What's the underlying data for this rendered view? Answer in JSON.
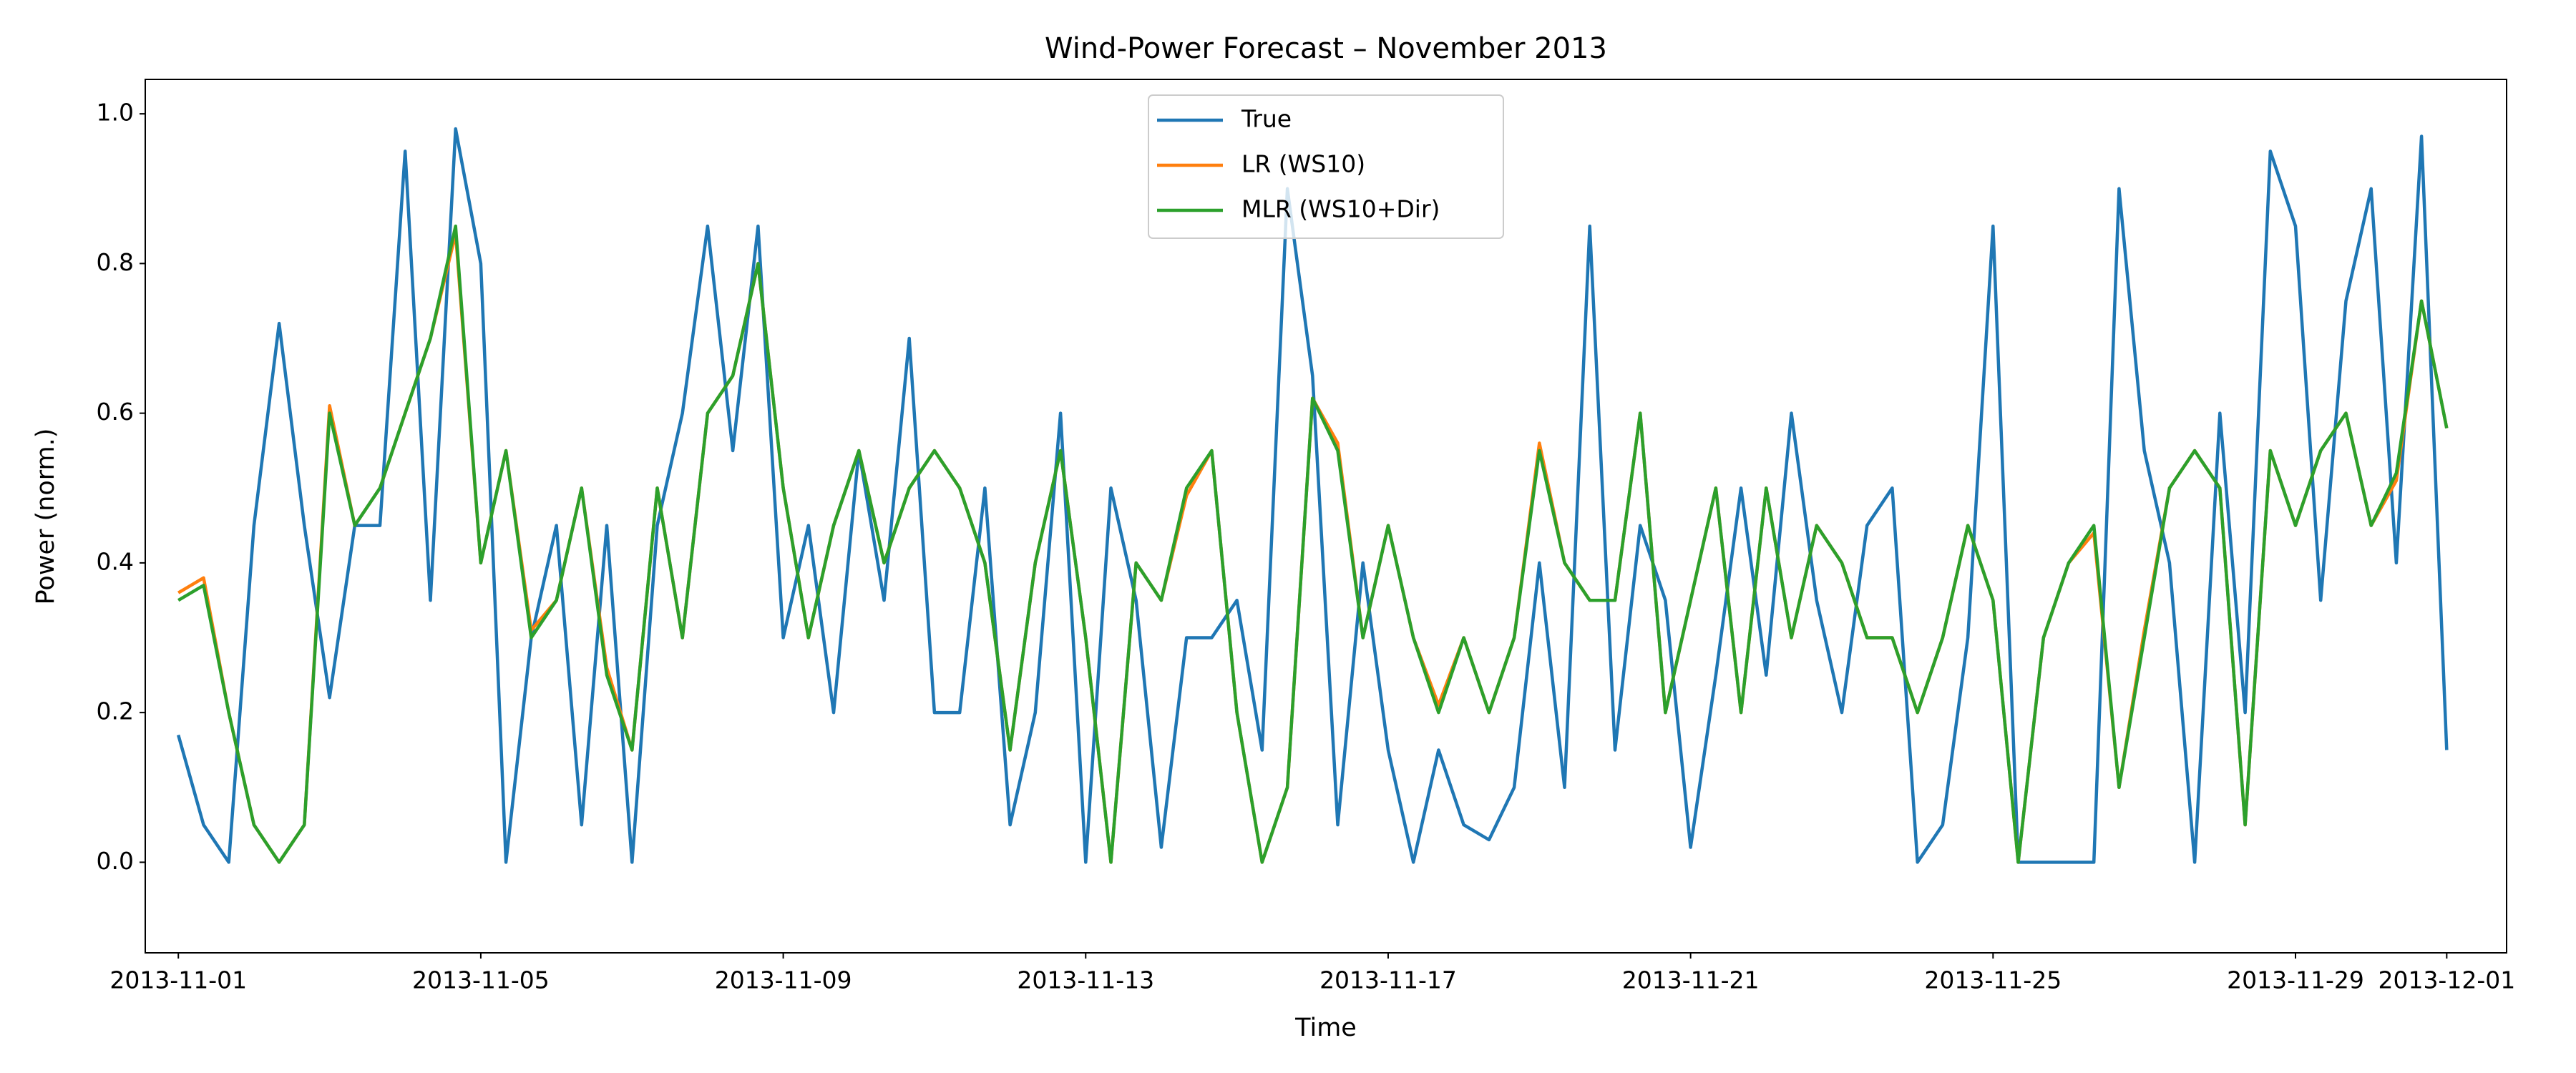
{
  "chart_data": {
    "type": "line",
    "title": "Wind-Power Forecast – November 2013",
    "xlabel": "Time",
    "ylabel": "Power (norm.)",
    "x": [
      "2013-11-01 00:00",
      "2013-11-01 08:00",
      "2013-11-01 16:00",
      "2013-11-02 00:00",
      "2013-11-02 08:00",
      "2013-11-02 16:00",
      "2013-11-03 00:00",
      "2013-11-03 08:00",
      "2013-11-03 16:00",
      "2013-11-04 00:00",
      "2013-11-04 08:00",
      "2013-11-04 16:00",
      "2013-11-05 00:00",
      "2013-11-05 08:00",
      "2013-11-05 16:00",
      "2013-11-06 00:00",
      "2013-11-06 08:00",
      "2013-11-06 16:00",
      "2013-11-07 00:00",
      "2013-11-07 08:00",
      "2013-11-07 16:00",
      "2013-11-08 00:00",
      "2013-11-08 08:00",
      "2013-11-08 16:00",
      "2013-11-09 00:00",
      "2013-11-09 08:00",
      "2013-11-09 16:00",
      "2013-11-10 00:00",
      "2013-11-10 08:00",
      "2013-11-10 16:00",
      "2013-11-11 00:00",
      "2013-11-11 08:00",
      "2013-11-11 16:00",
      "2013-11-12 00:00",
      "2013-11-12 08:00",
      "2013-11-12 16:00",
      "2013-11-13 00:00",
      "2013-11-13 08:00",
      "2013-11-13 16:00",
      "2013-11-14 00:00",
      "2013-11-14 08:00",
      "2013-11-14 16:00",
      "2013-11-15 00:00",
      "2013-11-15 08:00",
      "2013-11-15 16:00",
      "2013-11-16 00:00",
      "2013-11-16 08:00",
      "2013-11-16 16:00",
      "2013-11-17 00:00",
      "2013-11-17 08:00",
      "2013-11-17 16:00",
      "2013-11-18 00:00",
      "2013-11-18 08:00",
      "2013-11-18 16:00",
      "2013-11-19 00:00",
      "2013-11-19 08:00",
      "2013-11-19 16:00",
      "2013-11-20 00:00",
      "2013-11-20 08:00",
      "2013-11-20 16:00",
      "2013-11-21 00:00",
      "2013-11-21 08:00",
      "2013-11-21 16:00",
      "2013-11-22 00:00",
      "2013-11-22 08:00",
      "2013-11-22 16:00",
      "2013-11-23 00:00",
      "2013-11-23 08:00",
      "2013-11-23 16:00",
      "2013-11-24 00:00",
      "2013-11-24 08:00",
      "2013-11-24 16:00",
      "2013-11-25 00:00",
      "2013-11-25 08:00",
      "2013-11-25 16:00",
      "2013-11-26 00:00",
      "2013-11-26 08:00",
      "2013-11-26 16:00",
      "2013-11-27 00:00",
      "2013-11-27 08:00",
      "2013-11-27 16:00",
      "2013-11-28 00:00",
      "2013-11-28 08:00",
      "2013-11-28 16:00",
      "2013-11-29 00:00",
      "2013-11-29 08:00",
      "2013-11-29 16:00",
      "2013-11-30 00:00",
      "2013-11-30 08:00",
      "2013-11-30 16:00",
      "2013-12-01 00:00"
    ],
    "series": [
      {
        "name": "True",
        "color": "#1f77b4",
        "values": [
          0.17,
          0.05,
          0.0,
          0.45,
          0.72,
          0.45,
          0.22,
          0.45,
          0.45,
          0.95,
          0.35,
          0.98,
          0.8,
          0.0,
          0.3,
          0.45,
          0.05,
          0.45,
          0.0,
          0.45,
          0.6,
          0.85,
          0.55,
          0.85,
          0.3,
          0.45,
          0.2,
          0.55,
          0.35,
          0.7,
          0.2,
          0.2,
          0.5,
          0.05,
          0.2,
          0.6,
          0.0,
          0.5,
          0.35,
          0.02,
          0.3,
          0.3,
          0.35,
          0.15,
          0.9,
          0.65,
          0.05,
          0.4,
          0.15,
          0.0,
          0.15,
          0.05,
          0.03,
          0.1,
          0.4,
          0.1,
          0.85,
          0.15,
          0.45,
          0.35,
          0.02,
          0.25,
          0.5,
          0.25,
          0.6,
          0.35,
          0.2,
          0.45,
          0.5,
          0.0,
          0.05,
          0.3,
          0.85,
          0.0,
          0.0,
          0.0,
          0.0,
          0.9,
          0.55,
          0.4,
          0.0,
          0.6,
          0.2,
          0.95,
          0.85,
          0.35,
          0.75,
          0.9,
          0.4,
          0.97,
          0.15
        ]
      },
      {
        "name": "LR (WS10)",
        "color": "#ff7f0e",
        "values": [
          0.36,
          0.38,
          0.2,
          0.05,
          0.0,
          0.05,
          0.61,
          0.45,
          0.5,
          0.6,
          0.7,
          0.84,
          0.4,
          0.55,
          0.31,
          0.35,
          0.5,
          0.26,
          0.15,
          0.5,
          0.3,
          0.6,
          0.65,
          0.8,
          0.5,
          0.3,
          0.45,
          0.55,
          0.4,
          0.5,
          0.55,
          0.5,
          0.4,
          0.15,
          0.4,
          0.55,
          0.3,
          0.0,
          0.4,
          0.35,
          0.49,
          0.55,
          0.2,
          0.0,
          0.1,
          0.62,
          0.56,
          0.3,
          0.45,
          0.3,
          0.21,
          0.3,
          0.2,
          0.3,
          0.56,
          0.4,
          0.35,
          0.35,
          0.6,
          0.2,
          0.35,
          0.5,
          0.2,
          0.5,
          0.3,
          0.45,
          0.4,
          0.3,
          0.3,
          0.2,
          0.3,
          0.45,
          0.35,
          0.0,
          0.3,
          0.4,
          0.44,
          0.1,
          0.31,
          0.5,
          0.55,
          0.5,
          0.05,
          0.55,
          0.45,
          0.55,
          0.6,
          0.45,
          0.51,
          0.75,
          0.58
        ]
      },
      {
        "name": "MLR (WS10+Dir)",
        "color": "#2ca02c",
        "values": [
          0.35,
          0.37,
          0.2,
          0.05,
          0.0,
          0.05,
          0.6,
          0.45,
          0.5,
          0.6,
          0.7,
          0.85,
          0.4,
          0.55,
          0.3,
          0.35,
          0.5,
          0.25,
          0.15,
          0.5,
          0.3,
          0.6,
          0.65,
          0.8,
          0.5,
          0.3,
          0.45,
          0.55,
          0.4,
          0.5,
          0.55,
          0.5,
          0.4,
          0.15,
          0.4,
          0.55,
          0.3,
          0.0,
          0.4,
          0.35,
          0.5,
          0.55,
          0.2,
          0.0,
          0.1,
          0.62,
          0.55,
          0.3,
          0.45,
          0.3,
          0.2,
          0.3,
          0.2,
          0.3,
          0.55,
          0.4,
          0.35,
          0.35,
          0.6,
          0.2,
          0.35,
          0.5,
          0.2,
          0.5,
          0.3,
          0.45,
          0.4,
          0.3,
          0.3,
          0.2,
          0.3,
          0.45,
          0.35,
          0.0,
          0.3,
          0.4,
          0.45,
          0.1,
          0.3,
          0.5,
          0.55,
          0.5,
          0.05,
          0.55,
          0.45,
          0.55,
          0.6,
          0.45,
          0.52,
          0.75,
          0.58
        ]
      }
    ],
    "xlim": [
      "2013-10-31 13:30",
      "2013-12-01 19:00"
    ],
    "xticks": [
      "2013-11-01",
      "2013-11-05",
      "2013-11-09",
      "2013-11-13",
      "2013-11-17",
      "2013-11-21",
      "2013-11-25",
      "2013-11-29",
      "2013-12-01"
    ],
    "ylim": [
      -0.121,
      1.046
    ],
    "yticks": [
      {
        "value": 0,
        "label": "0.0"
      },
      {
        "value": 0.2,
        "label": "0.2"
      },
      {
        "value": 0.4,
        "label": "0.4"
      },
      {
        "value": 0.6,
        "label": "0.6"
      },
      {
        "value": 0.8,
        "label": "0.8"
      },
      {
        "value": 1,
        "label": "1.0"
      }
    ],
    "legend": "upper center"
  }
}
